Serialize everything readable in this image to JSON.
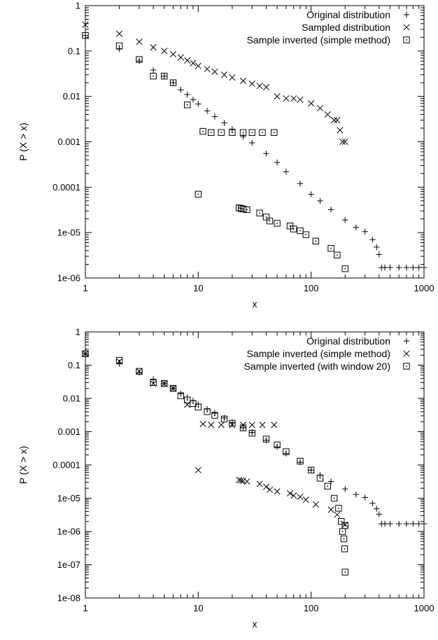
{
  "chart_data": [
    {
      "type": "scatter",
      "title": "",
      "xlabel": "x",
      "ylabel": "P (X > x)",
      "xscale": "log",
      "yscale": "log",
      "xlim": [
        1,
        1000
      ],
      "ylim": [
        1e-06,
        1
      ],
      "x_ticks": [
        1,
        10,
        100,
        1000
      ],
      "x_tick_labels": [
        "1",
        "10",
        "100",
        "1000"
      ],
      "y_ticks": [
        1e-06,
        1e-05,
        0.0001,
        0.001,
        0.01,
        0.1,
        1
      ],
      "y_tick_labels": [
        "1e-06",
        "1e-05",
        "0.0001",
        "0.001",
        "0.01",
        "0.1",
        "1"
      ],
      "grid": false,
      "legend_position": "top-right",
      "series": [
        {
          "name": "Original distribution",
          "marker": "plus",
          "x": [
            1,
            2,
            3,
            4,
            5,
            6,
            7,
            8,
            9,
            10,
            12,
            14,
            17,
            20,
            25,
            30,
            40,
            50,
            60,
            80,
            100,
            120,
            150,
            200,
            250,
            300,
            350,
            380,
            400,
            420,
            450,
            500,
            600,
            700,
            800,
            900,
            1000
          ],
          "y": [
            0.22,
            0.11,
            0.06,
            0.038,
            0.028,
            0.02,
            0.014,
            0.011,
            0.0085,
            0.0068,
            0.0048,
            0.0036,
            0.0026,
            0.0019,
            0.0013,
            0.00095,
            0.00055,
            0.00035,
            0.00022,
            0.00012,
            7e-05,
            5e-05,
            3.2e-05,
            1.9e-05,
            1.3e-05,
            1.05e-05,
            7e-06,
            4.8e-06,
            3.3e-06,
            1.7e-06,
            1.7e-06,
            1.7e-06,
            1.7e-06,
            1.7e-06,
            1.7e-06,
            1.7e-06,
            1.7e-06
          ]
        },
        {
          "name": "Sampled distribution",
          "marker": "cross",
          "x": [
            1,
            2,
            3,
            4,
            5,
            6,
            7,
            8,
            9,
            10,
            12,
            14,
            17,
            20,
            25,
            30,
            35,
            40,
            50,
            60,
            70,
            80,
            100,
            120,
            140,
            160,
            170,
            180,
            190,
            200
          ],
          "y": [
            0.38,
            0.24,
            0.16,
            0.12,
            0.1,
            0.085,
            0.072,
            0.062,
            0.054,
            0.047,
            0.04,
            0.035,
            0.03,
            0.026,
            0.022,
            0.019,
            0.017,
            0.016,
            0.01,
            0.009,
            0.009,
            0.0085,
            0.007,
            0.0055,
            0.004,
            0.003,
            0.003,
            0.0018,
            0.001,
            0.001
          ]
        },
        {
          "name": "Sample inverted (simple method)",
          "marker": "box",
          "x": [
            1,
            2,
            3,
            4,
            5,
            6,
            8,
            11,
            13,
            16,
            20,
            25,
            30,
            37,
            47,
            10,
            23,
            24,
            25,
            27,
            35,
            40,
            43,
            50,
            65,
            70,
            80,
            90,
            110,
            150,
            170,
            200
          ],
          "y": [
            0.22,
            0.13,
            0.065,
            0.028,
            0.028,
            0.02,
            0.0065,
            0.0017,
            0.0016,
            0.0016,
            0.0016,
            0.0016,
            0.0016,
            0.0016,
            0.0016,
            7e-05,
            3.5e-05,
            3.4e-05,
            3.3e-05,
            3.2e-05,
            2.7e-05,
            2.2e-05,
            1.8e-05,
            1.6e-05,
            1.4e-05,
            1.2e-05,
            1.1e-05,
            9e-06,
            6.5e-06,
            4.5e-06,
            3.2e-06,
            1.6e-06
          ]
        }
      ]
    },
    {
      "type": "scatter",
      "title": "",
      "xlabel": "x",
      "ylabel": "P (X > x)",
      "xscale": "log",
      "yscale": "log",
      "xlim": [
        1,
        1000
      ],
      "ylim": [
        1e-08,
        1
      ],
      "x_ticks": [
        1,
        10,
        100,
        1000
      ],
      "x_tick_labels": [
        "1",
        "10",
        "100",
        "1000"
      ],
      "y_ticks": [
        1e-08,
        1e-07,
        1e-06,
        1e-05,
        0.0001,
        0.001,
        0.01,
        0.1,
        1
      ],
      "y_tick_labels": [
        "1e-08",
        "1e-07",
        "1e-06",
        "1e-05",
        "0.0001",
        "0.001",
        "0.01",
        "0.1",
        "1"
      ],
      "grid": false,
      "legend_position": "top-right",
      "series": [
        {
          "name": "Original distribution",
          "marker": "plus",
          "x": [
            1,
            2,
            3,
            4,
            5,
            6,
            7,
            8,
            9,
            10,
            12,
            14,
            17,
            20,
            25,
            30,
            40,
            50,
            60,
            80,
            100,
            120,
            150,
            200,
            250,
            300,
            350,
            380,
            400,
            420,
            450,
            500,
            600,
            700,
            800,
            900,
            1000
          ],
          "y": [
            0.22,
            0.11,
            0.06,
            0.038,
            0.028,
            0.02,
            0.014,
            0.011,
            0.0085,
            0.0068,
            0.0048,
            0.0036,
            0.0026,
            0.0019,
            0.0013,
            0.00095,
            0.00055,
            0.00035,
            0.00022,
            0.00012,
            7e-05,
            5e-05,
            3.2e-05,
            1.9e-05,
            1.3e-05,
            1.05e-05,
            7e-06,
            4.8e-06,
            3.3e-06,
            1.7e-06,
            1.7e-06,
            1.7e-06,
            1.7e-06,
            1.7e-06,
            1.7e-06,
            1.7e-06,
            1.7e-06
          ]
        },
        {
          "name": "Sample inverted (simple method)",
          "marker": "cross",
          "x": [
            1,
            2,
            3,
            4,
            5,
            6,
            8,
            11,
            13,
            16,
            20,
            25,
            30,
            37,
            47,
            10,
            23,
            24,
            25,
            27,
            35,
            40,
            43,
            50,
            65,
            70,
            80,
            90,
            110,
            150,
            170,
            200
          ],
          "y": [
            0.22,
            0.13,
            0.065,
            0.028,
            0.028,
            0.02,
            0.0065,
            0.0017,
            0.0016,
            0.0016,
            0.0016,
            0.0016,
            0.0016,
            0.0016,
            0.0016,
            7e-05,
            3.5e-05,
            3.4e-05,
            3.3e-05,
            3.2e-05,
            2.7e-05,
            2.2e-05,
            1.8e-05,
            1.6e-05,
            1.4e-05,
            1.2e-05,
            1.1e-05,
            9e-06,
            6.5e-06,
            4.5e-06,
            3.2e-06,
            1.6e-06
          ]
        },
        {
          "name": "Sample inverted (with window 20)",
          "marker": "box",
          "x": [
            1,
            2,
            3,
            4,
            5,
            6,
            7,
            8,
            9,
            10,
            12,
            14,
            17,
            20,
            25,
            30,
            40,
            50,
            60,
            80,
            100,
            120,
            140,
            160,
            175,
            185,
            190,
            195,
            198,
            200,
            200
          ],
          "y": [
            0.22,
            0.14,
            0.065,
            0.03,
            0.028,
            0.02,
            0.012,
            0.009,
            0.007,
            0.0055,
            0.004,
            0.0031,
            0.0024,
            0.0018,
            0.0013,
            0.0009,
            0.0006,
            0.0004,
            0.00025,
            0.00013,
            7e-05,
            4e-05,
            2.3e-05,
            1e-05,
            5e-06,
            2e-06,
            1e-06,
            6e-07,
            3e-07,
            6e-08,
            1.5e-06
          ]
        }
      ]
    }
  ]
}
